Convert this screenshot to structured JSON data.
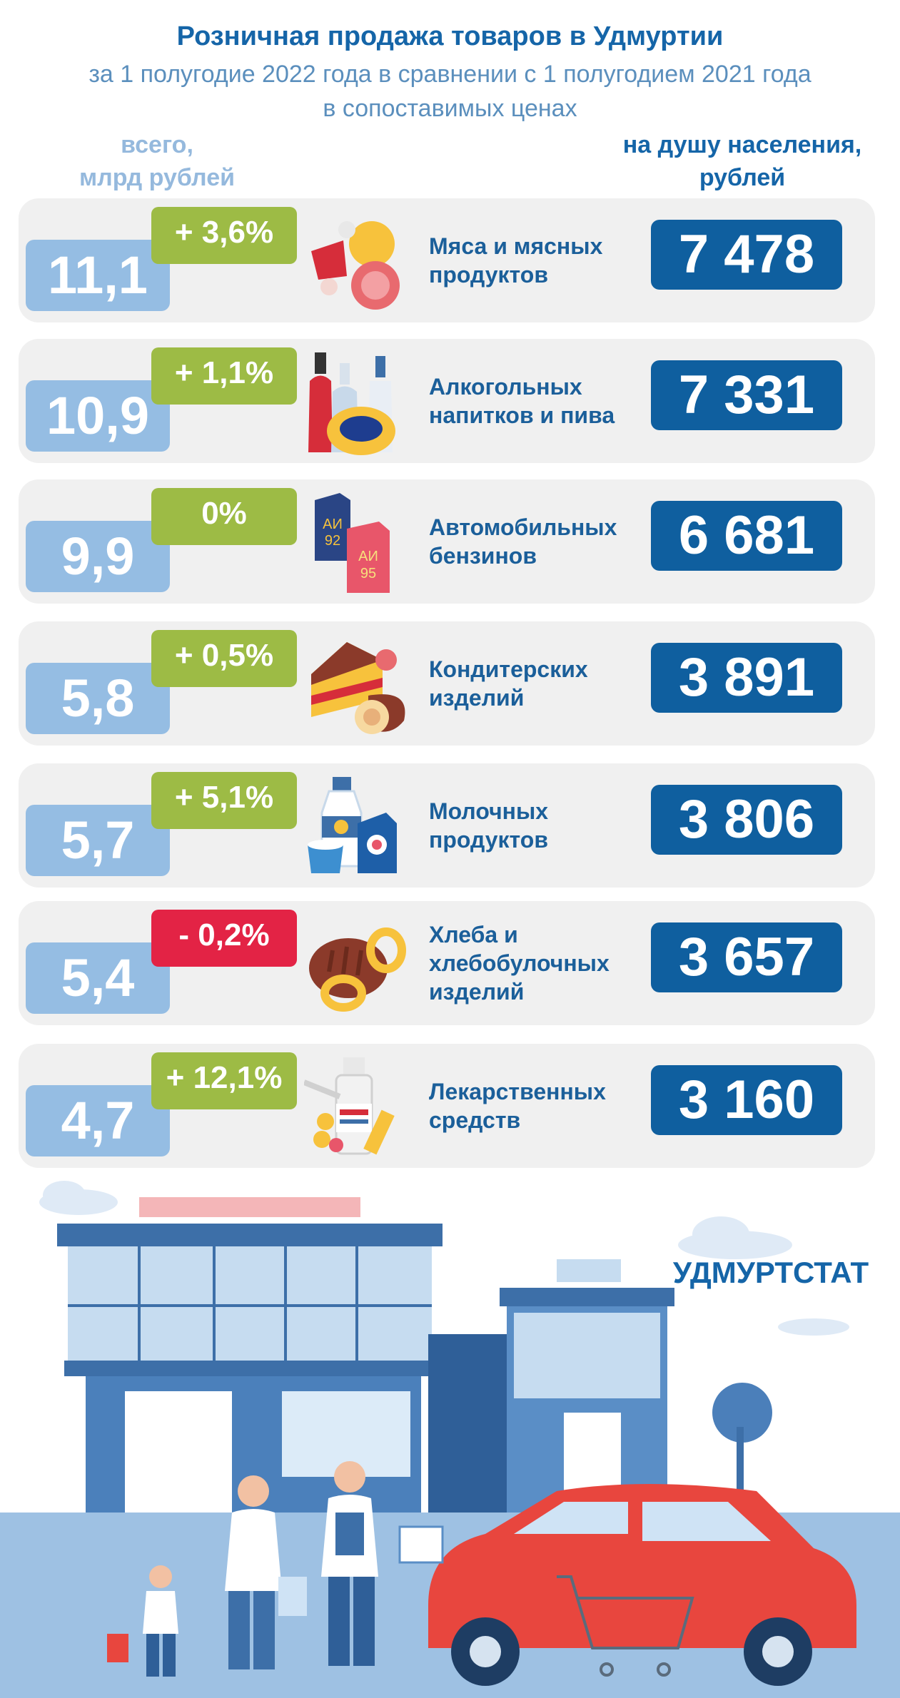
{
  "header": {
    "title": "Розничная продажа товаров в Удмуртии",
    "subtitle_line1": "за 1 полугодие 2022 года в сравнении с 1 полугодием 2021 года",
    "subtitle_line2": "в сопоставимых ценах",
    "left_col_line1": "всего,",
    "left_col_line2": "млрд рублей",
    "right_col_line1": "на душу населения,",
    "right_col_line2": "рублей"
  },
  "brand": "УДМУРТСТАТ",
  "colors": {
    "total_box": "#95bde3",
    "increase": "#9dbb45",
    "decrease": "#e32345",
    "per_capita_box": "#0f5f9f",
    "title": "#1565a8"
  },
  "chart_data": {
    "type": "table",
    "columns": [
      "category",
      "total_bln_rub",
      "change",
      "per_capita_rub"
    ],
    "rows": [
      {
        "label_lines": [
          "Мяса и мясных",
          "продуктов"
        ],
        "total": "11,1",
        "change": "+ 3,6%",
        "per_capita": "7 478",
        "icon": "meat-icon",
        "trend": "increase"
      },
      {
        "label_lines": [
          "Алкогольных",
          "напитков и пива"
        ],
        "total": "10,9",
        "change": "+ 1,1%",
        "per_capita": "7 331",
        "icon": "bottles-icon",
        "trend": "increase"
      },
      {
        "label_lines": [
          "Автомобильных",
          "бензинов"
        ],
        "total": "9,9",
        "change": "0%",
        "per_capita": "6 681",
        "icon": "fuel-canister-icon",
        "trend": "increase",
        "icon_text": [
          "АИ",
          "92",
          "АИ",
          "95"
        ]
      },
      {
        "label_lines": [
          "Кондитерских",
          "изделий"
        ],
        "total": "5,8",
        "change": "+ 0,5%",
        "per_capita": "3 891",
        "icon": "cake-icon",
        "trend": "increase"
      },
      {
        "label_lines": [
          "Молочных",
          "продуктов"
        ],
        "total": "5,7",
        "change": "+ 5,1%",
        "per_capita": "3 806",
        "icon": "milk-icon",
        "trend": "increase"
      },
      {
        "label_lines": [
          "Хлеба и",
          "хлебобулочных",
          "изделий"
        ],
        "total": "5,4",
        "change": "- 0,2%",
        "per_capita": "3 657",
        "icon": "bread-icon",
        "trend": "decrease"
      },
      {
        "label_lines": [
          "Лекарственных",
          "средств"
        ],
        "total": "4,7",
        "change": "+ 12,1%",
        "per_capita": "3 160",
        "icon": "medicine-icon",
        "trend": "increase"
      }
    ]
  }
}
